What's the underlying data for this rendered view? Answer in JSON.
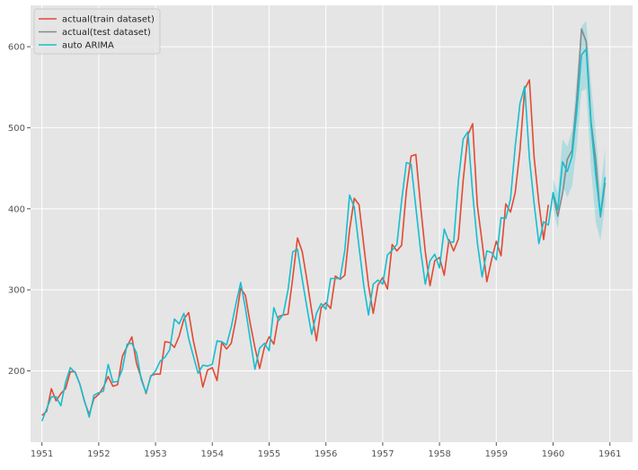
{
  "chart_data": {
    "type": "line",
    "title": "",
    "xlabel": "",
    "ylabel": "",
    "xlim": [
      1950.8,
      1961.4
    ],
    "ylim": [
      112,
      651
    ],
    "grid": true,
    "legend_position": "top-left",
    "x_ticks": [
      "1951",
      "1952",
      "1953",
      "1954",
      "1955",
      "1956",
      "1957",
      "1958",
      "1959",
      "1960",
      "1961"
    ],
    "y_ticks": [
      "200",
      "300",
      "400",
      "500",
      "600"
    ],
    "series": [
      {
        "name": "actual(train dataset)",
        "color": "#e24a33",
        "x": [
          1951.0,
          1951.0833,
          1951.1667,
          1951.25,
          1951.3333,
          1951.4167,
          1951.5,
          1951.5833,
          1951.6667,
          1951.75,
          1951.8333,
          1951.9167,
          1952.0,
          1952.0833,
          1952.1667,
          1952.25,
          1952.3333,
          1952.4167,
          1952.5,
          1952.5833,
          1952.6667,
          1952.75,
          1952.8333,
          1952.9167,
          1953.0,
          1953.0833,
          1953.1667,
          1953.25,
          1953.3333,
          1953.4167,
          1953.5,
          1953.5833,
          1953.6667,
          1953.75,
          1953.8333,
          1953.9167,
          1954.0,
          1954.0833,
          1954.1667,
          1954.25,
          1954.3333,
          1954.4167,
          1954.5,
          1954.5833,
          1954.6667,
          1954.75,
          1954.8333,
          1954.9167,
          1955.0,
          1955.0833,
          1955.1667,
          1955.25,
          1955.3333,
          1955.4167,
          1955.5,
          1955.5833,
          1955.6667,
          1955.75,
          1955.8333,
          1955.9167,
          1956.0,
          1956.0833,
          1956.1667,
          1956.25,
          1956.3333,
          1956.4167,
          1956.5,
          1956.5833,
          1956.6667,
          1956.75,
          1956.8333,
          1956.9167,
          1957.0,
          1957.0833,
          1957.1667,
          1957.25,
          1957.3333,
          1957.4167,
          1957.5,
          1957.5833,
          1957.6667,
          1957.75,
          1957.8333,
          1957.9167,
          1958.0,
          1958.0833,
          1958.1667,
          1958.25,
          1958.3333,
          1958.4167,
          1958.5,
          1958.5833,
          1958.6667,
          1958.75,
          1958.8333,
          1958.9167,
          1959.0,
          1959.0833,
          1959.1667,
          1959.25,
          1959.3333,
          1959.4167,
          1959.5,
          1959.5833,
          1959.6667,
          1959.75,
          1959.8333,
          1959.9167
        ],
        "values": [
          145,
          150,
          178,
          163,
          172,
          178,
          199,
          199,
          184,
          162,
          146,
          166,
          171,
          180,
          193,
          181,
          183,
          218,
          230,
          242,
          209,
          191,
          172,
          194,
          196,
          196,
          236,
          235,
          229,
          243,
          264,
          272,
          237,
          211,
          180,
          201,
          204,
          188,
          235,
          227,
          234,
          264,
          302,
          293,
          259,
          229,
          203,
          229,
          242,
          233,
          267,
          269,
          270,
          315,
          364,
          347,
          312,
          274,
          237,
          278,
          284,
          277,
          317,
          313,
          318,
          374,
          413,
          405,
          355,
          306,
          271,
          306,
          315,
          301,
          356,
          348,
          355,
          422,
          465,
          467,
          404,
          347,
          305,
          336,
          340,
          318,
          362,
          348,
          363,
          435,
          491,
          505,
          404,
          359,
          310,
          337,
          360,
          342,
          406,
          396,
          420,
          472,
          548,
          559,
          463,
          407,
          362,
          405
        ]
      },
      {
        "name": "actual(test dataset)",
        "color": "#888888",
        "x": [
          1960.0,
          1960.0833,
          1960.1667,
          1960.25,
          1960.3333,
          1960.4167,
          1960.5,
          1960.5833,
          1960.6667,
          1960.75,
          1960.8333,
          1960.9167
        ],
        "values": [
          417,
          391,
          419,
          461,
          472,
          535,
          622,
          606,
          508,
          461,
          390,
          432
        ]
      },
      {
        "name": "auto ARIMA",
        "color": "#17becf",
        "x": [
          1951.0,
          1951.0833,
          1951.1667,
          1951.25,
          1951.3333,
          1951.4167,
          1951.5,
          1951.5833,
          1951.6667,
          1951.75,
          1951.8333,
          1951.9167,
          1952.0,
          1952.0833,
          1952.1667,
          1952.25,
          1952.3333,
          1952.4167,
          1952.5,
          1952.5833,
          1952.6667,
          1952.75,
          1952.8333,
          1952.9167,
          1953.0,
          1953.0833,
          1953.1667,
          1953.25,
          1953.3333,
          1953.4167,
          1953.5,
          1953.5833,
          1953.6667,
          1953.75,
          1953.8333,
          1953.9167,
          1954.0,
          1954.0833,
          1954.1667,
          1954.25,
          1954.3333,
          1954.4167,
          1954.5,
          1954.5833,
          1954.6667,
          1954.75,
          1954.8333,
          1954.9167,
          1955.0,
          1955.0833,
          1955.1667,
          1955.25,
          1955.3333,
          1955.4167,
          1955.5,
          1955.5833,
          1955.6667,
          1955.75,
          1955.8333,
          1955.9167,
          1956.0,
          1956.0833,
          1956.1667,
          1956.25,
          1956.3333,
          1956.4167,
          1956.5,
          1956.5833,
          1956.6667,
          1956.75,
          1956.8333,
          1956.9167,
          1957.0,
          1957.0833,
          1957.1667,
          1957.25,
          1957.3333,
          1957.4167,
          1957.5,
          1957.5833,
          1957.6667,
          1957.75,
          1957.8333,
          1957.9167,
          1958.0,
          1958.0833,
          1958.1667,
          1958.25,
          1958.3333,
          1958.4167,
          1958.5,
          1958.5833,
          1958.6667,
          1958.75,
          1958.8333,
          1958.9167,
          1959.0,
          1959.0833,
          1959.1667,
          1959.25,
          1959.3333,
          1959.4167,
          1959.5,
          1959.5833,
          1959.6667,
          1959.75,
          1959.8333,
          1959.9167,
          1960.0,
          1960.0833,
          1960.1667,
          1960.25,
          1960.3333,
          1960.4167,
          1960.5,
          1960.5833,
          1960.6667,
          1960.75,
          1960.8333,
          1960.9167
        ],
        "values": [
          138,
          153,
          168,
          168,
          157,
          186,
          204,
          198,
          184,
          163,
          143,
          170,
          173,
          175,
          208,
          186,
          187,
          202,
          233,
          234,
          222,
          189,
          173,
          193,
          200,
          212,
          217,
          226,
          264,
          258,
          271,
          240,
          218,
          197,
          207,
          206,
          208,
          237,
          236,
          232,
          254,
          283,
          309,
          277,
          239,
          202,
          228,
          234,
          225,
          278,
          262,
          270,
          300,
          347,
          350,
          313,
          278,
          245,
          271,
          283,
          276,
          314,
          314,
          314,
          349,
          417,
          402,
          353,
          305,
          269,
          307,
          312,
          307,
          343,
          349,
          356,
          410,
          457,
          455,
          402,
          349,
          307,
          336,
          344,
          327,
          375,
          359,
          359,
          435,
          486,
          495,
          419,
          358,
          316,
          348,
          346,
          337,
          389,
          388,
          412,
          477,
          530,
          551,
          462,
          406,
          357,
          384,
          380,
          420,
          399,
          458,
          446,
          465,
          520,
          590,
          597,
          505,
          442,
          392,
          439
        ]
      }
    ],
    "confidence_band": {
      "color": "#17becf",
      "x": [
        1960.0,
        1960.0833,
        1960.1667,
        1960.25,
        1960.3333,
        1960.4167,
        1960.5,
        1960.5833,
        1960.6667,
        1960.75,
        1960.8333,
        1960.9167
      ],
      "lower": [
        402,
        375,
        430,
        414,
        428,
        476,
        545,
        548,
        451,
        384,
        361,
        405
      ],
      "upper": [
        437,
        420,
        486,
        477,
        497,
        560,
        625,
        632,
        555,
        494,
        422,
        474
      ]
    }
  }
}
